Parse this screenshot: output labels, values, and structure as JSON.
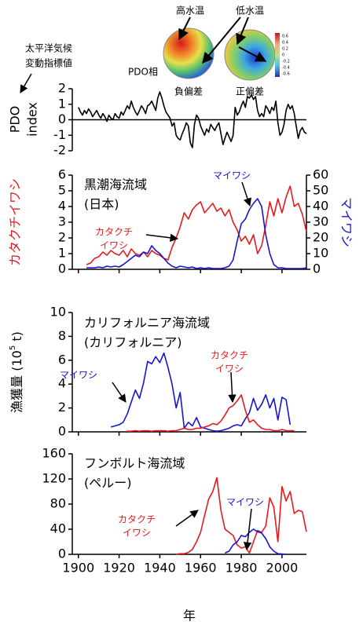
{
  "inset": {
    "labels": {
      "warm": "高水温",
      "cold": "低水温",
      "phase": "PDO相",
      "negative": "負偏差",
      "positive": "正偏差"
    },
    "colorbar_ticks": [
      0.6,
      0.4,
      0.2,
      0,
      -0.2,
      -0.4,
      -0.6
    ],
    "clim": [
      -0.7,
      0.7
    ]
  },
  "chart_data": [
    {
      "type": "line",
      "ylabel": [
        "PDO",
        "index"
      ],
      "annotation": [
        "太平洋気候",
        "変動指標値"
      ],
      "zero_line": true,
      "xlim": [
        1897,
        2012
      ],
      "ylim": [
        -2,
        2
      ],
      "yticks": [
        -2,
        -1,
        0,
        1,
        2
      ],
      "x": [
        1900,
        1901,
        1902,
        1903,
        1904,
        1905,
        1906,
        1907,
        1908,
        1909,
        1910,
        1911,
        1912,
        1913,
        1914,
        1915,
        1916,
        1917,
        1918,
        1919,
        1920,
        1921,
        1922,
        1923,
        1924,
        1925,
        1926,
        1927,
        1928,
        1929,
        1930,
        1931,
        1932,
        1933,
        1934,
        1935,
        1936,
        1937,
        1938,
        1939,
        1940,
        1941,
        1942,
        1943,
        1944,
        1945,
        1946,
        1947,
        1948,
        1949,
        1950,
        1951,
        1952,
        1953,
        1954,
        1955,
        1956,
        1957,
        1958,
        1959,
        1960,
        1961,
        1962,
        1963,
        1964,
        1965,
        1966,
        1967,
        1968,
        1969,
        1970,
        1971,
        1972,
        1973,
        1974,
        1975,
        1976,
        1977,
        1978,
        1979,
        1980,
        1981,
        1982,
        1983,
        1984,
        1985,
        1986,
        1987,
        1988,
        1989,
        1990,
        1991,
        1992,
        1993,
        1994,
        1995,
        1996,
        1997,
        1998,
        1999,
        2000,
        2001,
        2002,
        2003,
        2004,
        2005,
        2006,
        2007,
        2008,
        2009,
        2010,
        2011,
        2012
      ],
      "series": [
        {
          "color": "#000000",
          "values": [
            0.8,
            0.5,
            0.3,
            0.6,
            0.4,
            0.7,
            0.5,
            0.2,
            0.4,
            0.6,
            0.3,
            0.1,
            0.4,
            0.2,
            -0.1,
            0.3,
            0.1,
            0.0,
            0.4,
            0.2,
            0.1,
            0.5,
            0.3,
            0.6,
            0.9,
            0.7,
            1.2,
            0.8,
            0.5,
            0.3,
            0.6,
            0.9,
            0.7,
            0.4,
            0.9,
            1.0,
            1.2,
            0.9,
            0.6,
            1.4,
            1.8,
            1.4,
            0.9,
            0.5,
            0.3,
            0.1,
            -0.4,
            -0.2,
            -1.0,
            -1.2,
            -1.3,
            -0.9,
            -0.6,
            -0.2,
            -0.4,
            -1.5,
            -1.8,
            -0.3,
            0.3,
            0.1,
            -0.4,
            -0.7,
            -1.0,
            -0.6,
            -0.8,
            -0.3,
            -0.5,
            -0.7,
            -0.4,
            -0.2,
            -0.9,
            -1.6,
            -1.2,
            -0.8,
            -1.1,
            -1.4,
            -1.0,
            0.8,
            0.3,
            0.5,
            0.9,
            1.2,
            0.8,
            1.5,
            1.4,
            1.6,
            1.3,
            1.5,
            0.6,
            0.2,
            0.4,
            0.2,
            0.9,
            0.7,
            0.4,
            0.8,
            0.6,
            1.2,
            -0.2,
            -1.0,
            -0.8,
            -0.3,
            0.6,
            1.0,
            0.7,
            0.9,
            0.4,
            -0.4,
            -1.2,
            -0.7,
            -0.5,
            -0.8,
            -0.9
          ]
        }
      ]
    },
    {
      "type": "line",
      "title": [
        "黒潮海流域",
        "(日本)"
      ],
      "ylabel": "カタクチイワシ",
      "ylabel_color": "#e8191c",
      "y2label": "マイワシ",
      "y2label_color": "#1515d0",
      "xlim": [
        1897,
        2012
      ],
      "xticks": [
        1900,
        1920,
        1940,
        1960,
        1980,
        2000
      ],
      "ylim": [
        0,
        6
      ],
      "yticks": [
        0,
        1,
        2,
        3,
        4,
        5,
        6
      ],
      "y2lim": [
        0,
        60
      ],
      "y2ticks": [
        0,
        10,
        20,
        30,
        40,
        50,
        60
      ],
      "annotations": [
        {
          "lines": [
            "カタクチ",
            "イワシ"
          ],
          "color": "#e8191c"
        },
        {
          "lines": [
            "マイワシ"
          ],
          "color": "#1515d0"
        }
      ],
      "x": [
        1902,
        1904,
        1906,
        1908,
        1910,
        1912,
        1914,
        1916,
        1918,
        1920,
        1922,
        1924,
        1926,
        1928,
        1930,
        1932,
        1934,
        1936,
        1938,
        1940,
        1942,
        1944,
        1946,
        1948,
        1950,
        1952,
        1954,
        1956,
        1958,
        1960,
        1962,
        1964,
        1966,
        1968,
        1970,
        1972,
        1974,
        1976,
        1978,
        1980,
        1982,
        1984,
        1986,
        1988,
        1990,
        1992,
        1994,
        1996,
        1998,
        2000,
        2002,
        2004,
        2006,
        2008,
        2010,
        2012
      ],
      "series": [
        {
          "color": "#e8191c",
          "values": [
            null,
            0.3,
            0.4,
            0.7,
            0.8,
            1.1,
            0.9,
            1.2,
            1.0,
            0.9,
            1.2,
            0.8,
            1.3,
            1.0,
            0.9,
            1.1,
            0.8,
            1.2,
            1.0,
            0.9,
            0.7,
            0.6,
            1.4,
            2.0,
            2.7,
            3.6,
            3.2,
            3.8,
            4.1,
            4.3,
            3.6,
            3.9,
            4.2,
            3.7,
            3.9,
            3.4,
            3.8,
            3.0,
            2.5,
            1.8,
            2.1,
            1.6,
            2.2,
            1.0,
            1.5,
            2.8,
            4.3,
            3.4,
            4.5,
            3.6,
            4.6,
            5.3,
            4.0,
            4.2,
            3.5,
            2.4
          ]
        },
        {
          "color": "#1515d0",
          "axis": "y2",
          "values": [
            null,
            1,
            1,
            1,
            1.5,
            1,
            2,
            1.5,
            2,
            1.5,
            3,
            5,
            7,
            9,
            8,
            11,
            10,
            15,
            12,
            10,
            7,
            4,
            2,
            1,
            2,
            1.5,
            1,
            1.5,
            0.5,
            1,
            0.5,
            1,
            0.5,
            0.5,
            0.5,
            1,
            2,
            6,
            18,
            29,
            32,
            38,
            42,
            45,
            40,
            22,
            10,
            3,
            1,
            1,
            0.5,
            0.5,
            0.5,
            0.5,
            0.5,
            1
          ]
        }
      ]
    },
    {
      "type": "line",
      "title": [
        "カリフォルニア海流域",
        "(カリフォルニア)"
      ],
      "ylabel": {
        "main": "漁獲量 (10",
        "sup": "5",
        "end": " t)"
      },
      "xlim": [
        1897,
        2012
      ],
      "xticks": [
        1900,
        1920,
        1940,
        1960,
        1980,
        2000
      ],
      "ylim": [
        0,
        10
      ],
      "yticks": [
        0,
        2,
        4,
        6,
        8,
        10
      ],
      "annotations": [
        {
          "lines": [
            "マイワシ"
          ],
          "color": "#1515d0"
        },
        {
          "lines": [
            "カタクチ",
            "イワシ"
          ],
          "color": "#e8191c"
        }
      ],
      "x": [
        1902,
        1904,
        1906,
        1908,
        1910,
        1912,
        1914,
        1916,
        1918,
        1920,
        1922,
        1924,
        1926,
        1928,
        1930,
        1932,
        1934,
        1936,
        1938,
        1940,
        1942,
        1944,
        1946,
        1948,
        1950,
        1952,
        1954,
        1956,
        1958,
        1960,
        1962,
        1964,
        1966,
        1968,
        1970,
        1972,
        1974,
        1976,
        1978,
        1980,
        1982,
        1984,
        1986,
        1988,
        1990,
        1992,
        1994,
        1996,
        1998,
        2000,
        2002,
        2004,
        2006,
        2008,
        2010,
        2012
      ],
      "series": [
        {
          "color": "#1515d0",
          "values": [
            null,
            null,
            null,
            null,
            null,
            null,
            null,
            0.4,
            0.5,
            0.6,
            0.8,
            1.5,
            2.5,
            3.5,
            2.8,
            4.1,
            5.9,
            5.7,
            6.3,
            5.8,
            6.6,
            5.4,
            4.0,
            2.0,
            3.3,
            0.3,
            0.8,
            0.5,
            1.2,
            0.4,
            0.3,
            0.2,
            0.1,
            0.05,
            0.1,
            0.2,
            0.3,
            0.5,
            0.6,
            0.5,
            1.1,
            1.6,
            2.8,
            1.8,
            2.3,
            3.1,
            2.0,
            2.8,
            1.0,
            2.9,
            2.7,
            0.6,
            null,
            null,
            null,
            null
          ]
        },
        {
          "color": "#e8191c",
          "values": [
            null,
            null,
            null,
            null,
            null,
            null,
            null,
            null,
            null,
            null,
            null,
            0.05,
            0.05,
            0.1,
            0.05,
            0.1,
            0.1,
            0.05,
            0.1,
            0.1,
            0.1,
            0.05,
            0.1,
            0.1,
            0.2,
            0.3,
            0.2,
            0.2,
            0.3,
            0.3,
            0.4,
            0.5,
            0.7,
            0.6,
            0.9,
            1.4,
            2.0,
            2.2,
            2.6,
            3.1,
            1.8,
            0.8,
            1.0,
            0.6,
            0.3,
            0.2,
            0.2,
            0.1,
            0.1,
            0.2,
            0.1,
            0.1,
            0.1,
            null,
            null,
            null
          ]
        }
      ]
    },
    {
      "type": "line",
      "title": [
        "フンボルト海流域",
        "(ペルー)"
      ],
      "xlabel": "年",
      "xtick_labels": true,
      "xlim": [
        1897,
        2012
      ],
      "xticks": [
        1900,
        1920,
        1940,
        1960,
        1980,
        2000
      ],
      "ylim": [
        0,
        160
      ],
      "yticks": [
        0,
        40,
        80,
        120,
        160
      ],
      "annotations": [
        {
          "lines": [
            "カタクチ",
            "イワシ"
          ],
          "color": "#e8191c"
        },
        {
          "lines": [
            "マイワシ"
          ],
          "color": "#1515d0"
        }
      ],
      "x": [
        1902,
        1904,
        1906,
        1908,
        1910,
        1912,
        1914,
        1916,
        1918,
        1920,
        1922,
        1924,
        1926,
        1928,
        1930,
        1932,
        1934,
        1936,
        1938,
        1940,
        1942,
        1944,
        1946,
        1948,
        1950,
        1952,
        1954,
        1956,
        1958,
        1960,
        1962,
        1964,
        1966,
        1968,
        1970,
        1972,
        1974,
        1976,
        1978,
        1980,
        1982,
        1984,
        1986,
        1988,
        1990,
        1992,
        1994,
        1996,
        1998,
        2000,
        2002,
        2004,
        2006,
        2008,
        2010,
        2012
      ],
      "series": [
        {
          "color": "#e8191c",
          "values": [
            null,
            null,
            null,
            null,
            null,
            null,
            null,
            null,
            null,
            null,
            null,
            null,
            null,
            null,
            null,
            null,
            null,
            null,
            null,
            null,
            null,
            null,
            null,
            0,
            1,
            1,
            3,
            8,
            20,
            35,
            62,
            88,
            100,
            122,
            70,
            40,
            35,
            30,
            15,
            10,
            12,
            2,
            20,
            38,
            35,
            45,
            90,
            75,
            20,
            108,
            85,
            100,
            65,
            70,
            68,
            36
          ]
        },
        {
          "color": "#1515d0",
          "values": [
            null,
            null,
            null,
            null,
            null,
            null,
            null,
            null,
            null,
            null,
            null,
            null,
            null,
            null,
            null,
            null,
            null,
            null,
            null,
            null,
            null,
            null,
            null,
            null,
            null,
            null,
            null,
            null,
            null,
            null,
            null,
            null,
            null,
            null,
            null,
            2,
            5,
            15,
            20,
            30,
            28,
            35,
            40,
            36,
            34,
            25,
            12,
            5,
            1,
            0.5,
            0,
            null,
            null,
            null,
            null,
            null
          ]
        }
      ]
    }
  ]
}
